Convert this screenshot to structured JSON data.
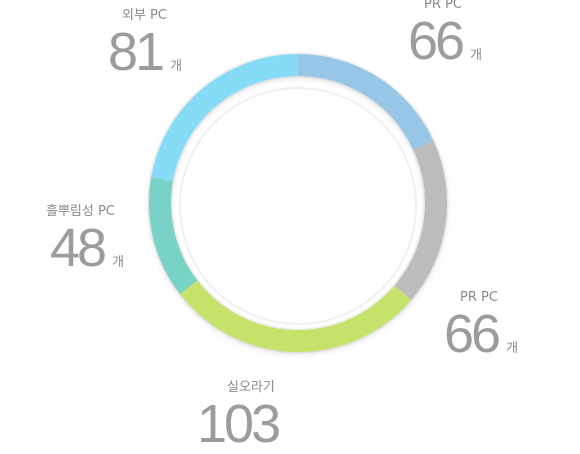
{
  "chart_data": {
    "type": "pie",
    "categories": [
      "외부 PC",
      "PR PC",
      "PR PC",
      "실오라기",
      "흘뿌림성 PC"
    ],
    "values": [
      81,
      66,
      66,
      103,
      48
    ],
    "unit": "개",
    "colors": [
      "#86dcf7",
      "#97c6e6",
      "#bcbcbc",
      "#c5e36a",
      "#78d2c6"
    ],
    "style": "donut"
  },
  "labels": [
    {
      "name": "외부 PC",
      "value": "81",
      "unit": "개"
    },
    {
      "name": "PR PC",
      "value": "66",
      "unit": "개"
    },
    {
      "name": "PR PC",
      "value": "66",
      "unit": "개"
    },
    {
      "name": "실오라기",
      "value": "103",
      "unit": ""
    },
    {
      "name": "흘뿌림성 PC",
      "value": "48",
      "unit": "개"
    }
  ]
}
